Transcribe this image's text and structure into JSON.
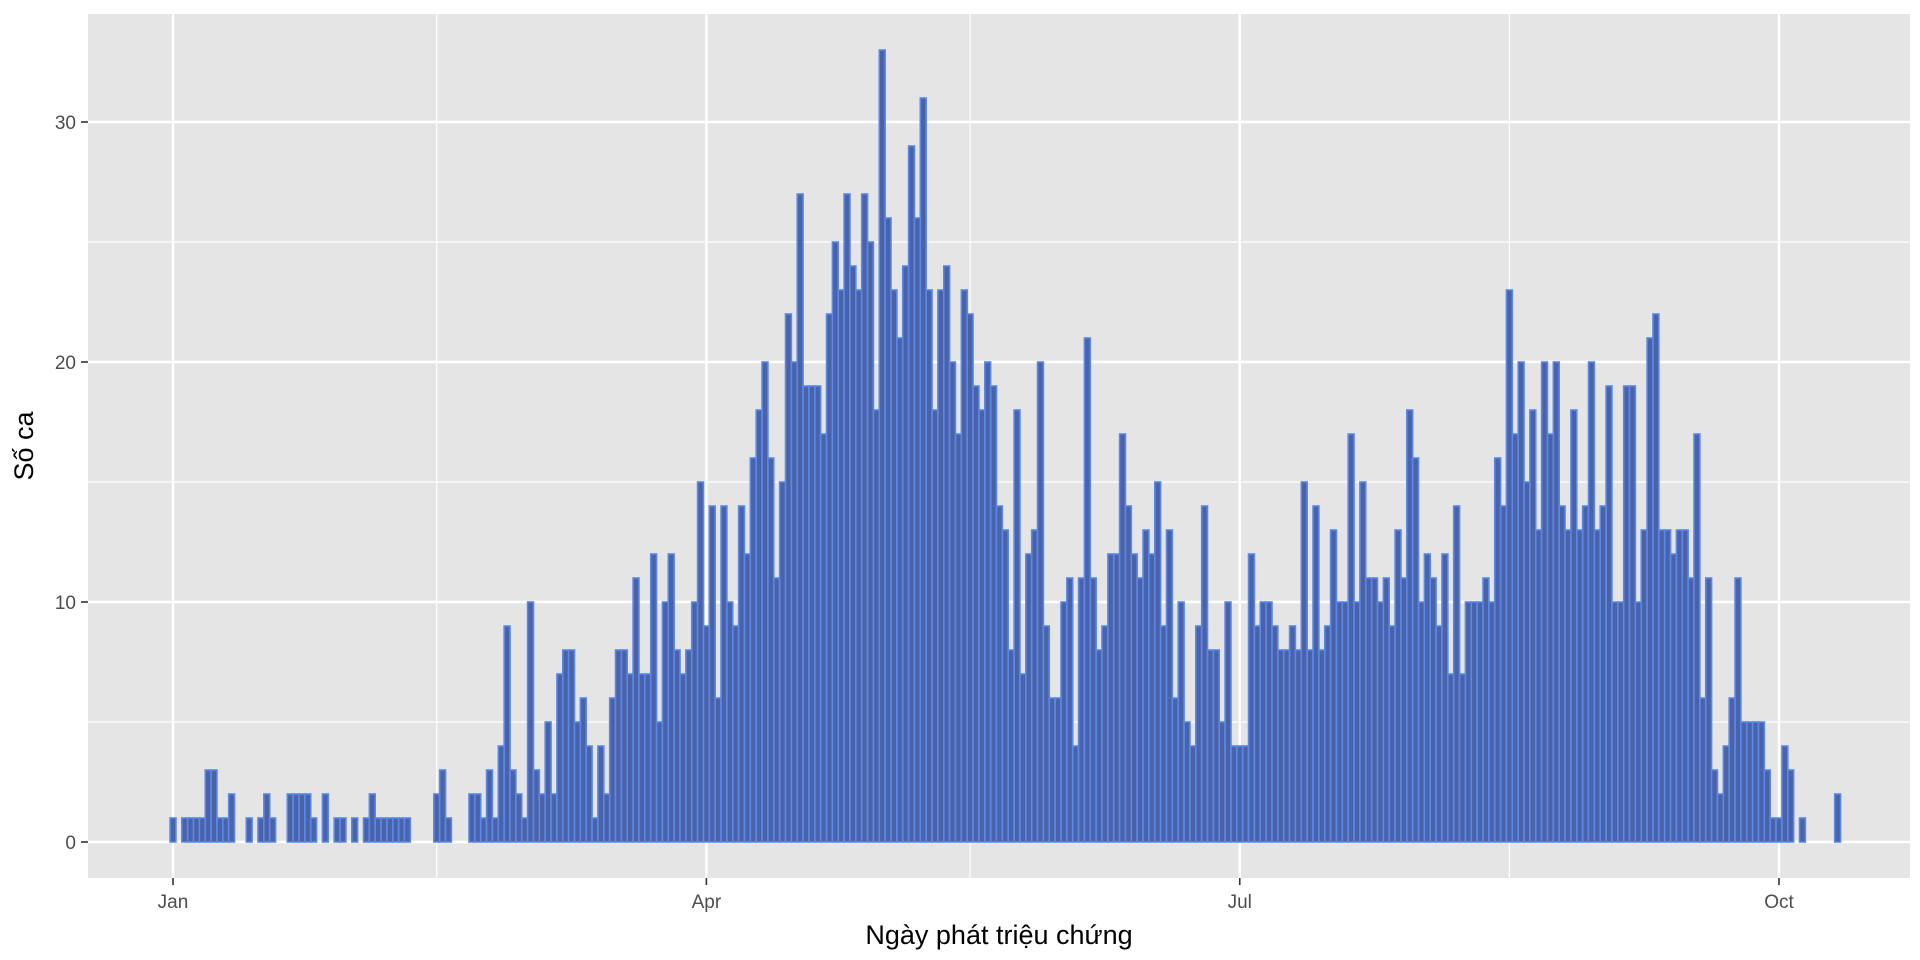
{
  "chart_data": {
    "type": "bar",
    "xlabel": "Ngày phát triệu chứng",
    "ylabel": "Số ca",
    "x_start": "2020-01-01",
    "values": [
      1,
      0,
      1,
      1,
      1,
      1,
      3,
      3,
      1,
      1,
      2,
      0,
      0,
      1,
      0,
      1,
      2,
      1,
      0,
      0,
      2,
      2,
      2,
      2,
      1,
      0,
      2,
      0,
      1,
      1,
      0,
      1,
      0,
      1,
      2,
      1,
      1,
      1,
      1,
      1,
      1,
      0,
      0,
      0,
      0,
      2,
      3,
      1,
      0,
      0,
      0,
      2,
      2,
      1,
      3,
      1,
      4,
      9,
      3,
      2,
      1,
      10,
      3,
      2,
      5,
      2,
      7,
      8,
      8,
      5,
      6,
      4,
      1,
      4,
      2,
      6,
      8,
      8,
      7,
      11,
      7,
      7,
      12,
      5,
      10,
      12,
      8,
      7,
      8,
      10,
      15,
      9,
      14,
      6,
      14,
      10,
      9,
      14,
      12,
      16,
      18,
      20,
      16,
      11,
      15,
      22,
      20,
      27,
      19,
      19,
      19,
      17,
      22,
      25,
      23,
      27,
      24,
      23,
      27,
      25,
      18,
      33,
      26,
      23,
      21,
      24,
      29,
      26,
      31,
      23,
      18,
      23,
      24,
      20,
      17,
      23,
      22,
      19,
      18,
      20,
      19,
      14,
      13,
      8,
      18,
      7,
      12,
      13,
      20,
      9,
      6,
      6,
      10,
      11,
      4,
      11,
      21,
      11,
      8,
      9,
      12,
      12,
      17,
      14,
      12,
      11,
      13,
      12,
      15,
      9,
      13,
      6,
      10,
      5,
      4,
      9,
      14,
      8,
      8,
      5,
      10,
      4,
      4,
      4,
      12,
      9,
      10,
      10,
      9,
      8,
      8,
      9,
      8,
      15,
      8,
      14,
      8,
      9,
      13,
      10,
      10,
      17,
      10,
      15,
      11,
      11,
      10,
      11,
      9,
      13,
      11,
      18,
      16,
      10,
      12,
      11,
      9,
      12,
      7,
      14,
      7,
      10,
      10,
      10,
      11,
      10,
      16,
      14,
      23,
      17,
      20,
      15,
      18,
      13,
      20,
      17,
      20,
      14,
      13,
      18,
      13,
      14,
      20,
      13,
      14,
      19,
      10,
      10,
      19,
      19,
      10,
      13,
      21,
      22,
      13,
      13,
      12,
      13,
      13,
      11,
      17,
      6,
      11,
      3,
      2,
      4,
      6,
      11,
      5,
      5,
      5,
      5,
      3,
      1,
      1,
      4,
      3,
      0,
      1,
      0,
      0,
      0,
      0,
      0,
      2
    ],
    "x_ticks": [
      {
        "date": "2020-01-01",
        "label": "Jan"
      },
      {
        "date": "2020-04-01",
        "label": "Apr"
      },
      {
        "date": "2020-07-01",
        "label": "Jul"
      },
      {
        "date": "2020-10-01",
        "label": "Oct"
      }
    ],
    "x_minor_ticks": [
      "2020-02-15",
      "2020-05-16",
      "2020-08-16"
    ],
    "y_ticks": [
      0,
      10,
      20,
      30
    ],
    "ylim": [
      -1.5,
      34.5
    ],
    "grid": true,
    "colors": {
      "panel": "#e5e5e5",
      "grid": "#ffffff",
      "bar_fill": "#4a62a8",
      "bar_outline": "#5b88e8"
    }
  }
}
